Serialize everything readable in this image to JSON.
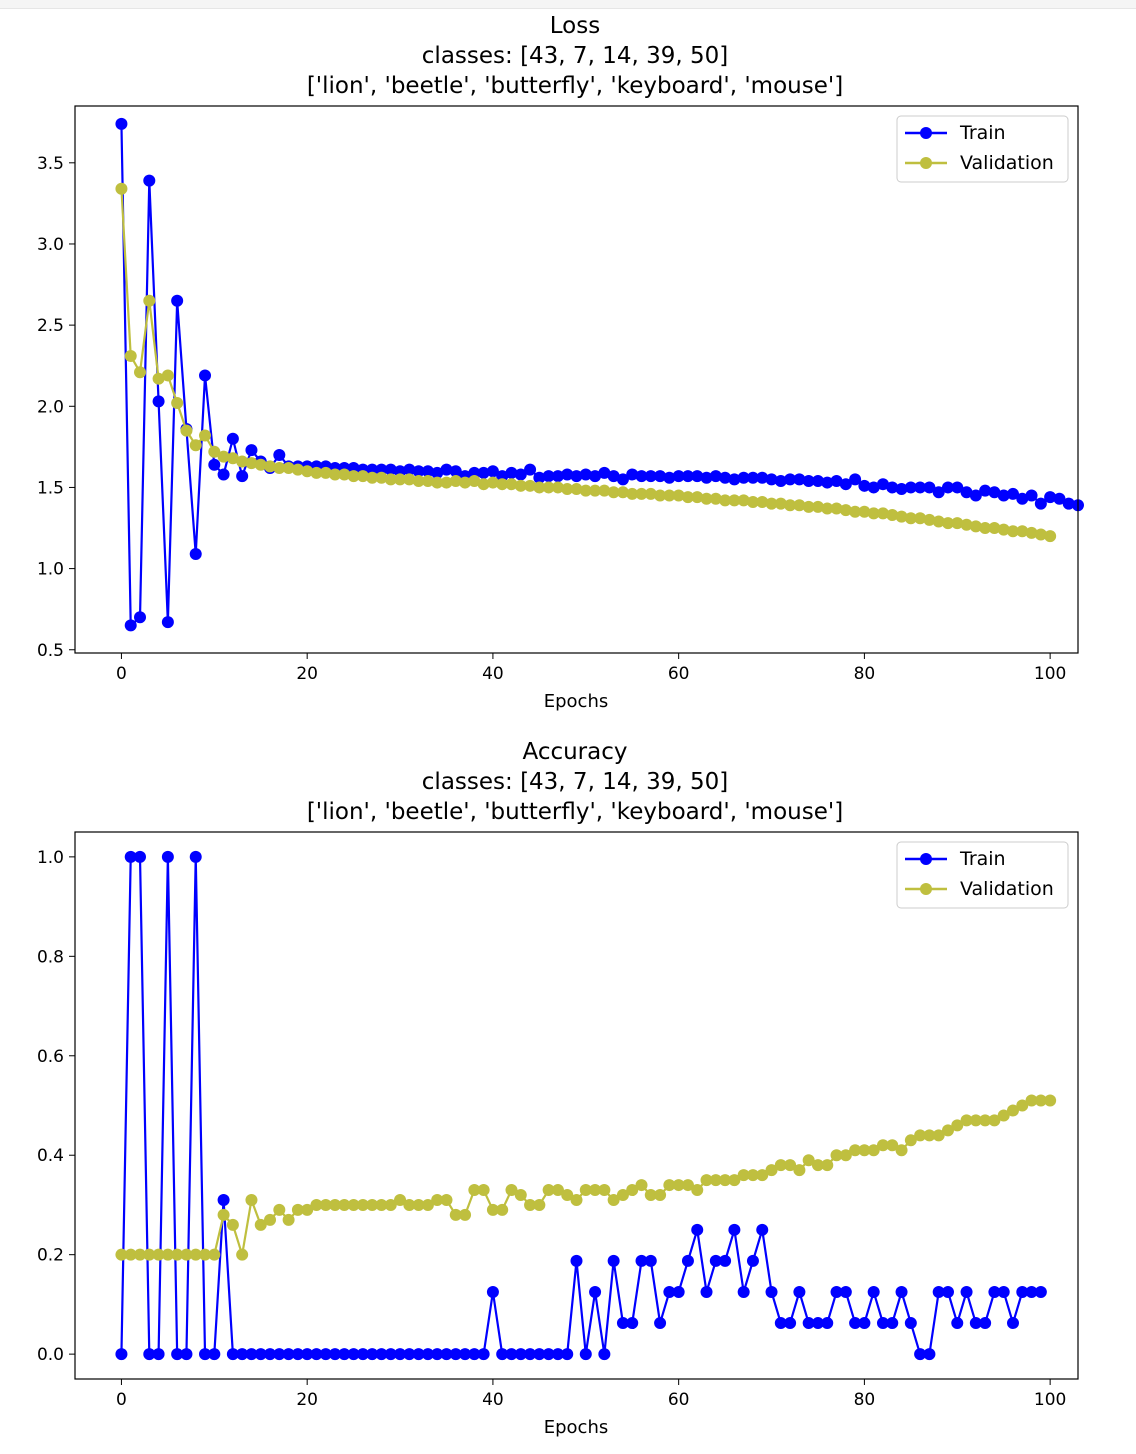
{
  "colors": {
    "train": "#0000ff",
    "validation": "#bfbf3f"
  },
  "chart_data": [
    {
      "type": "line",
      "title": "Loss",
      "subtitle_1": "classes: [43, 7, 14, 39, 50]",
      "subtitle_2": "['lion', 'beetle', 'butterfly', 'keyboard', 'mouse']",
      "xlabel": "Epochs",
      "ylabel": "",
      "xlim": [
        -5,
        103
      ],
      "ylim": [
        0.48,
        3.85
      ],
      "xticks": [
        "0",
        "20",
        "40",
        "60",
        "80",
        "100"
      ],
      "yticks": [
        "0.5",
        "1.0",
        "1.5",
        "2.0",
        "2.5",
        "3.0",
        "3.5"
      ],
      "legend_position": "top-right",
      "grid": false,
      "series": [
        {
          "name": "Train",
          "values": [
            3.74,
            0.65,
            0.7,
            3.39,
            2.03,
            0.67,
            2.65,
            1.86,
            1.09,
            2.19,
            1.64,
            1.58,
            1.8,
            1.57,
            1.73,
            1.66,
            1.62,
            1.7,
            1.63,
            1.63,
            1.63,
            1.63,
            1.63,
            1.62,
            1.62,
            1.62,
            1.61,
            1.61,
            1.61,
            1.61,
            1.6,
            1.61,
            1.6,
            1.6,
            1.59,
            1.61,
            1.6,
            1.57,
            1.59,
            1.59,
            1.6,
            1.57,
            1.59,
            1.58,
            1.61,
            1.56,
            1.57,
            1.57,
            1.58,
            1.57,
            1.58,
            1.57,
            1.59,
            1.57,
            1.55,
            1.58,
            1.57,
            1.57,
            1.57,
            1.56,
            1.57,
            1.57,
            1.57,
            1.56,
            1.57,
            1.56,
            1.55,
            1.56,
            1.56,
            1.56,
            1.55,
            1.54,
            1.55,
            1.55,
            1.54,
            1.54,
            1.53,
            1.54,
            1.52,
            1.55,
            1.51,
            1.5,
            1.52,
            1.5,
            1.49,
            1.5,
            1.5,
            1.5,
            1.47,
            1.5,
            1.5,
            1.47,
            1.45,
            1.48,
            1.47,
            1.45,
            1.46,
            1.43,
            1.45,
            1.4,
            1.44,
            1.43,
            1.4,
            1.39
          ]
        },
        {
          "name": "Validation",
          "values": [
            3.34,
            2.31,
            2.21,
            2.65,
            2.17,
            2.19,
            2.02,
            1.85,
            1.76,
            1.82,
            1.72,
            1.69,
            1.68,
            1.66,
            1.65,
            1.64,
            1.63,
            1.62,
            1.62,
            1.61,
            1.6,
            1.59,
            1.59,
            1.58,
            1.58,
            1.57,
            1.57,
            1.56,
            1.56,
            1.55,
            1.55,
            1.55,
            1.54,
            1.54,
            1.53,
            1.53,
            1.54,
            1.53,
            1.54,
            1.52,
            1.53,
            1.52,
            1.52,
            1.51,
            1.51,
            1.5,
            1.5,
            1.5,
            1.49,
            1.49,
            1.48,
            1.48,
            1.48,
            1.47,
            1.47,
            1.46,
            1.46,
            1.46,
            1.45,
            1.45,
            1.45,
            1.44,
            1.44,
            1.43,
            1.43,
            1.42,
            1.42,
            1.42,
            1.41,
            1.41,
            1.4,
            1.4,
            1.39,
            1.39,
            1.38,
            1.38,
            1.37,
            1.37,
            1.36,
            1.35,
            1.35,
            1.34,
            1.34,
            1.33,
            1.32,
            1.31,
            1.31,
            1.3,
            1.29,
            1.28,
            1.28,
            1.27,
            1.26,
            1.25,
            1.25,
            1.24,
            1.23,
            1.23,
            1.22,
            1.21,
            1.2
          ]
        }
      ]
    },
    {
      "type": "line",
      "title": "Accuracy",
      "subtitle_1": "classes: [43, 7, 14, 39, 50]",
      "subtitle_2": "['lion', 'beetle', 'butterfly', 'keyboard', 'mouse']",
      "xlabel": "Epochs",
      "ylabel": "",
      "xlim": [
        -5,
        103
      ],
      "ylim": [
        -0.05,
        1.05
      ],
      "xticks": [
        "0",
        "20",
        "40",
        "60",
        "80",
        "100"
      ],
      "yticks": [
        "0.0",
        "0.2",
        "0.4",
        "0.6",
        "0.8",
        "1.0"
      ],
      "legend_position": "top-right",
      "grid": false,
      "series": [
        {
          "name": "Train",
          "values": [
            0,
            1,
            1,
            0,
            0,
            1,
            0,
            0,
            1,
            0,
            0,
            0.31,
            0,
            0,
            0,
            0,
            0,
            0,
            0,
            0,
            0,
            0,
            0,
            0,
            0,
            0,
            0,
            0,
            0,
            0,
            0,
            0,
            0,
            0,
            0,
            0,
            0,
            0,
            0,
            0,
            0.125,
            0,
            0,
            0,
            0,
            0,
            0,
            0,
            0,
            0.1875,
            0,
            0.125,
            0,
            0.1875,
            0.0625,
            0.0625,
            0.1875,
            0.1875,
            0.0625,
            0.125,
            0.125,
            0.1875,
            0.25,
            0.125,
            0.1875,
            0.1875,
            0.25,
            0.125,
            0.1875,
            0.25,
            0.125,
            0.0625,
            0.0625,
            0.125,
            0.0625,
            0.0625,
            0.0625,
            0.125,
            0.125,
            0.0625,
            0.0625,
            0.125,
            0.0625,
            0.0625,
            0.125,
            0.0625,
            0,
            0,
            0.125,
            0.125,
            0.0625,
            0.125,
            0.0625,
            0.0625,
            0.125,
            0.125,
            0.0625,
            0.125,
            0.125,
            0.125
          ]
        },
        {
          "name": "Validation",
          "values": [
            0.2,
            0.2,
            0.2,
            0.2,
            0.2,
            0.2,
            0.2,
            0.2,
            0.2,
            0.2,
            0.2,
            0.28,
            0.26,
            0.2,
            0.31,
            0.26,
            0.27,
            0.29,
            0.27,
            0.29,
            0.29,
            0.3,
            0.3,
            0.3,
            0.3,
            0.3,
            0.3,
            0.3,
            0.3,
            0.3,
            0.31,
            0.3,
            0.3,
            0.3,
            0.31,
            0.31,
            0.28,
            0.28,
            0.33,
            0.33,
            0.29,
            0.29,
            0.33,
            0.32,
            0.3,
            0.3,
            0.33,
            0.33,
            0.32,
            0.31,
            0.33,
            0.33,
            0.33,
            0.31,
            0.32,
            0.33,
            0.34,
            0.32,
            0.32,
            0.34,
            0.34,
            0.34,
            0.33,
            0.35,
            0.35,
            0.35,
            0.35,
            0.36,
            0.36,
            0.36,
            0.37,
            0.38,
            0.38,
            0.37,
            0.39,
            0.38,
            0.38,
            0.4,
            0.4,
            0.41,
            0.41,
            0.41,
            0.42,
            0.42,
            0.41,
            0.43,
            0.44,
            0.44,
            0.44,
            0.45,
            0.46,
            0.47,
            0.47,
            0.47,
            0.47,
            0.48,
            0.49,
            0.5,
            0.51,
            0.51,
            0.51
          ]
        }
      ]
    }
  ]
}
